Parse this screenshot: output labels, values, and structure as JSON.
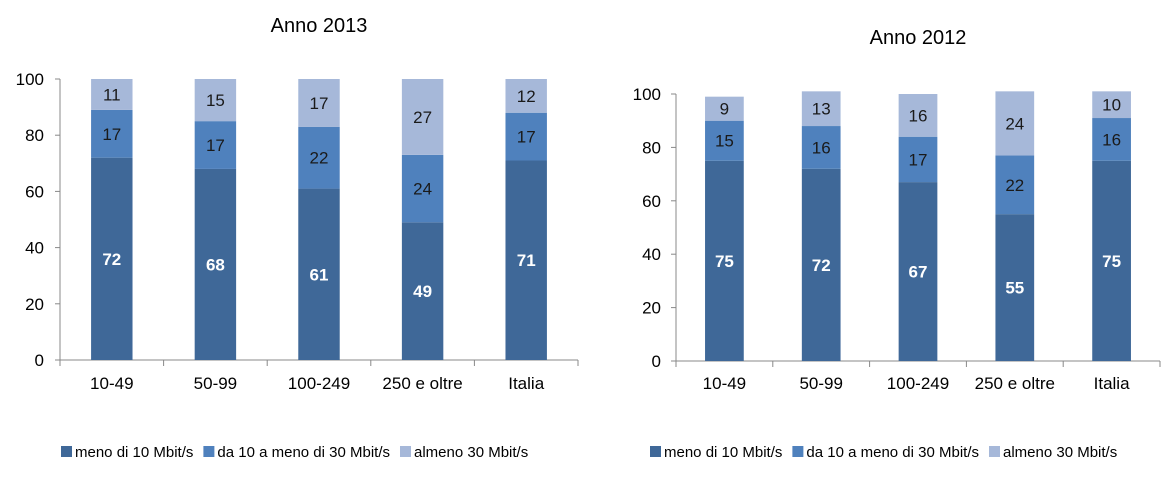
{
  "colors": {
    "series": [
      "#3F6898",
      "#4F81BD",
      "#A6B8D9"
    ],
    "label_light": "#ffffff",
    "label_dark": "#1a1a1a",
    "axis": "#888888"
  },
  "chart_data": [
    {
      "type": "bar",
      "stacked": true,
      "title": "Anno 2013",
      "categories": [
        "10-49",
        "50-99",
        "100-249",
        "250 e oltre",
        "Italia"
      ],
      "series": [
        {
          "name": "meno di 10 Mbit/s",
          "values": [
            72,
            68,
            61,
            49,
            71
          ]
        },
        {
          "name": "da 10 a meno di 30 Mbit/s",
          "values": [
            17,
            17,
            22,
            24,
            17
          ]
        },
        {
          "name": "almeno 30 Mbit/s",
          "values": [
            11,
            15,
            17,
            27,
            12
          ]
        }
      ],
      "ylim": [
        0,
        100
      ],
      "yticks": [
        0,
        20,
        40,
        60,
        80,
        100
      ],
      "legend": "bottom",
      "grid": false
    },
    {
      "type": "bar",
      "stacked": true,
      "title": "Anno 2012",
      "categories": [
        "10-49",
        "50-99",
        "100-249",
        "250 e oltre",
        "Italia"
      ],
      "series": [
        {
          "name": "meno di 10 Mbit/s",
          "values": [
            75,
            72,
            67,
            55,
            75
          ]
        },
        {
          "name": "da 10 a meno di 30 Mbit/s",
          "values": [
            15,
            16,
            17,
            22,
            16
          ]
        },
        {
          "name": "almeno 30 Mbit/s",
          "values": [
            9,
            13,
            16,
            24,
            10
          ]
        }
      ],
      "ylim": [
        0,
        100
      ],
      "yticks": [
        0,
        20,
        40,
        60,
        80,
        100
      ],
      "legend": "bottom",
      "grid": false
    }
  ]
}
